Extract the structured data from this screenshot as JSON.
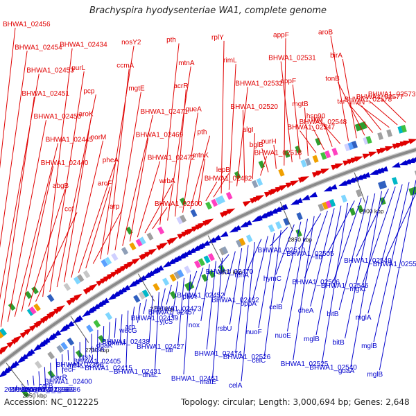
{
  "title": "Brachyspira hyodysenteriae WA1, complete genome",
  "footer": {
    "accession": "Accession: NC_012225",
    "stats": "Topology: circular; Length: 3,000,694 bp; Genes: 2,648"
  },
  "ticks": [
    "2650 kbp",
    "2700 kbp",
    "2750 kbp",
    "2800 kbp",
    "2850 kbp",
    "2900 kbp"
  ],
  "forward_labels": [
    "BHWA1_02456",
    "BHWA1_02454",
    "BHWA1_02453",
    "BHWA1_02451",
    "BHWA1_02450",
    "BHWA1_02445",
    "BHWA1_02440",
    "abgB",
    "cof",
    "BHWA1_02434",
    "purL",
    "pcp",
    "aroK",
    "norM",
    "pheA",
    "aroF",
    "arp",
    "nosY2",
    "ccmA",
    "mgtE",
    "BHWA1_02471",
    "BHWA1_02469",
    "BHWA1_02472",
    "wrbA",
    "BHWA1_02500",
    "pth",
    "mtnA",
    "acrR",
    "queA",
    "pth",
    "mtnK",
    "BHWA1_02482",
    "lepB",
    "rplY",
    "rimL",
    "BHWA1_02532",
    "BHWA1_02520",
    "algI",
    "BHWA1_02518",
    "bglB",
    "purH",
    "appF",
    "BHWA1_02531",
    "appF",
    "mgtB",
    "BHWA1_02547",
    "BHWA1_02548",
    "ugd",
    "hsp90",
    "aroB",
    "birA",
    "tonB",
    "tar",
    "mviN",
    "BHWA1_02578",
    "BHWA1_02577",
    "BHWA1_02573"
  ],
  "reverse_labels": [
    "2650 kbp",
    "BHWA1_02371",
    "cstA",
    "BHWA1_02388",
    "BHWA1_02389",
    "BHWA1_02386",
    "carB",
    "BHWA1_02400",
    "marR",
    "BHWA1_02396",
    "recF",
    "metK",
    "BHWA1_02405",
    "ptsN",
    "BHWA1_02415",
    "fusA",
    "dhaK",
    "BHWA1_02438",
    "dhaM",
    "BHWA1_02431",
    "wecG",
    "arp",
    "BHWA1_02439",
    "BHWA1_02427",
    "dhaL",
    "BHWA1_02457",
    "BHWA1_02473",
    "yjcS",
    "tar",
    "BHWA1_02461",
    "BHWA1_02452",
    "pfkA",
    "nox",
    "BHWA1_02474",
    "matE",
    "BHWA1_02470",
    "BHWA1_02462",
    "rsbU",
    "BHWA1_02526",
    "celA",
    "tenA",
    "oppA",
    "nuoF",
    "celC",
    "BHWA1_02510",
    "hymC",
    "celB",
    "nuoE",
    "BHWA1_02525",
    "BHWA1_02505",
    "BHWA1_02506",
    "cheA",
    "mglB",
    "BHWA1_02540",
    "fld",
    "BHWA1_02546",
    "bitB",
    "bitB",
    "guaA",
    "BHWA1_02549",
    "mglC",
    "mglA",
    "mglB",
    "mglB",
    "BHWA1_02557"
  ],
  "colors": {
    "forward": "#e00000",
    "reverse": "#0000cc",
    "backbone": "#8a8a8a"
  }
}
